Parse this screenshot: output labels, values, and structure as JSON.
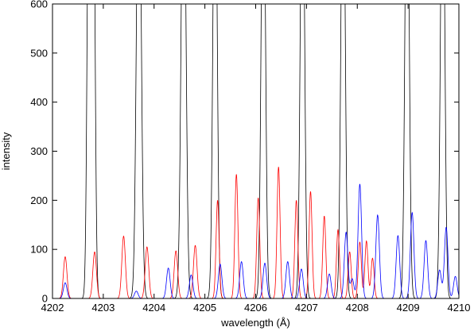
{
  "chart_data": {
    "type": "line",
    "title": "",
    "xlabel": "wavelength (Å)",
    "ylabel": "intensity",
    "xlim": [
      4202,
      4210
    ],
    "ylim": [
      0,
      600
    ],
    "x_ticks": [
      4202,
      4203,
      4204,
      4205,
      4206,
      4207,
      4208,
      4209,
      4210
    ],
    "y_ticks": [
      0,
      100,
      200,
      300,
      400,
      500,
      600
    ],
    "grid": false,
    "legend": "none",
    "colors": {
      "black": "#000000",
      "red": "#ff0000",
      "blue": "#0000ff"
    },
    "series": [
      {
        "color": "black",
        "peaks": [
          {
            "x": 4202.72,
            "y": 1000,
            "w": 0.035
          },
          {
            "x": 4202.76,
            "y": 210,
            "w": 0.01
          },
          {
            "x": 4202.8,
            "y": 1000,
            "w": 0.035
          },
          {
            "x": 4203.7,
            "y": 1000,
            "w": 0.045
          },
          {
            "x": 4204.58,
            "y": 1000,
            "w": 0.045
          },
          {
            "x": 4205.2,
            "y": 1000,
            "w": 0.04
          },
          {
            "x": 4206.15,
            "y": 1000,
            "w": 0.04
          },
          {
            "x": 4206.92,
            "y": 1000,
            "w": 0.04
          },
          {
            "x": 4207.72,
            "y": 1000,
            "w": 0.04
          },
          {
            "x": 4208.98,
            "y": 1000,
            "w": 0.04
          },
          {
            "x": 4209.68,
            "y": 1000,
            "w": 0.04
          }
        ]
      },
      {
        "color": "red",
        "peaks": [
          {
            "x": 4202.25,
            "y": 85,
            "w": 0.035
          },
          {
            "x": 4202.83,
            "y": 95,
            "w": 0.035
          },
          {
            "x": 4203.4,
            "y": 127,
            "w": 0.035
          },
          {
            "x": 4203.86,
            "y": 105,
            "w": 0.035
          },
          {
            "x": 4204.43,
            "y": 97,
            "w": 0.035
          },
          {
            "x": 4204.81,
            "y": 108,
            "w": 0.035
          },
          {
            "x": 4205.25,
            "y": 200,
            "w": 0.03
          },
          {
            "x": 4205.62,
            "y": 253,
            "w": 0.03
          },
          {
            "x": 4206.05,
            "y": 205,
            "w": 0.03
          },
          {
            "x": 4206.45,
            "y": 268,
            "w": 0.03
          },
          {
            "x": 4206.8,
            "y": 200,
            "w": 0.03
          },
          {
            "x": 4207.08,
            "y": 218,
            "w": 0.03
          },
          {
            "x": 4207.35,
            "y": 168,
            "w": 0.03
          },
          {
            "x": 4207.62,
            "y": 140,
            "w": 0.03
          },
          {
            "x": 4207.85,
            "y": 95,
            "w": 0.03
          },
          {
            "x": 4208.05,
            "y": 115,
            "w": 0.03
          },
          {
            "x": 4208.18,
            "y": 117,
            "w": 0.03
          },
          {
            "x": 4208.3,
            "y": 82,
            "w": 0.03
          }
        ]
      },
      {
        "color": "blue",
        "peaks": [
          {
            "x": 4202.25,
            "y": 32,
            "w": 0.035
          },
          {
            "x": 4203.65,
            "y": 15,
            "w": 0.035
          },
          {
            "x": 4204.28,
            "y": 62,
            "w": 0.035
          },
          {
            "x": 4204.73,
            "y": 48,
            "w": 0.035
          },
          {
            "x": 4205.3,
            "y": 70,
            "w": 0.035
          },
          {
            "x": 4205.72,
            "y": 75,
            "w": 0.035
          },
          {
            "x": 4206.18,
            "y": 72,
            "w": 0.035
          },
          {
            "x": 4206.63,
            "y": 75,
            "w": 0.035
          },
          {
            "x": 4206.9,
            "y": 60,
            "w": 0.035
          },
          {
            "x": 4207.45,
            "y": 50,
            "w": 0.035
          },
          {
            "x": 4207.78,
            "y": 135,
            "w": 0.035
          },
          {
            "x": 4207.9,
            "y": 40,
            "w": 0.035
          },
          {
            "x": 4208.05,
            "y": 233,
            "w": 0.035
          },
          {
            "x": 4208.4,
            "y": 170,
            "w": 0.035
          },
          {
            "x": 4208.8,
            "y": 128,
            "w": 0.035
          },
          {
            "x": 4209.08,
            "y": 175,
            "w": 0.035
          },
          {
            "x": 4209.35,
            "y": 118,
            "w": 0.035
          },
          {
            "x": 4209.62,
            "y": 58,
            "w": 0.035
          },
          {
            "x": 4209.75,
            "y": 145,
            "w": 0.035
          },
          {
            "x": 4209.93,
            "y": 45,
            "w": 0.035
          }
        ]
      }
    ]
  }
}
